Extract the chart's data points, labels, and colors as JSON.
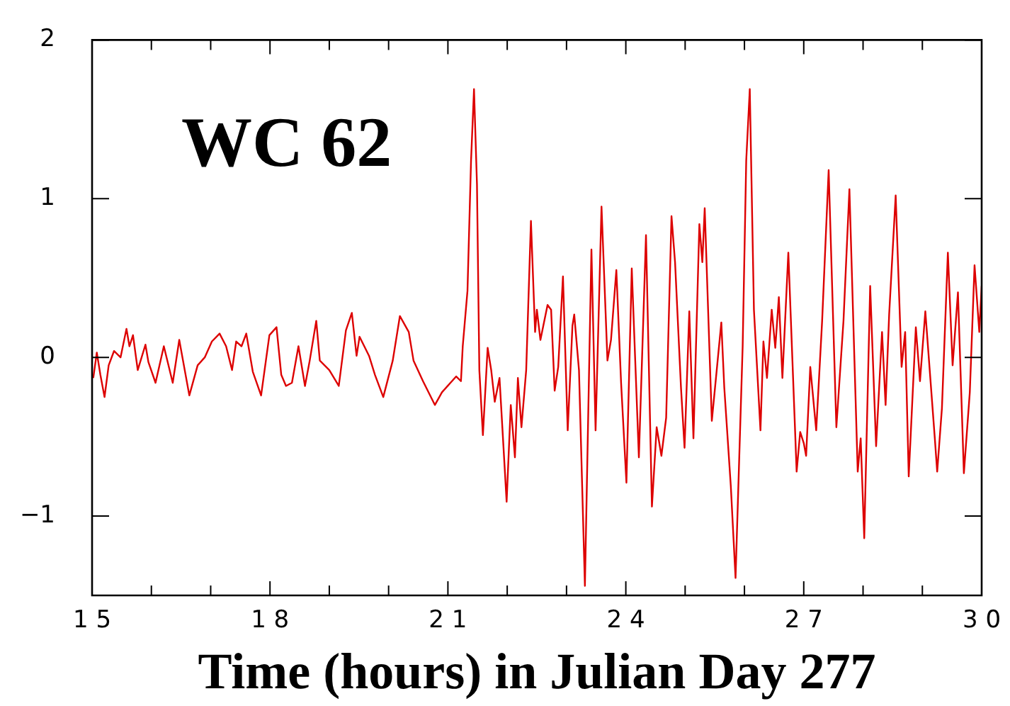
{
  "chart_data": {
    "type": "line",
    "title": "WC 62",
    "xlabel": "Time (hours) in Julian Day 277",
    "xlim": [
      15,
      30
    ],
    "ylim": [
      -1.5,
      2
    ],
    "xticks": [
      15,
      {
        "value": 16,
        "label": null
      },
      {
        "value": 17,
        "label": null
      },
      18,
      {
        "value": 19,
        "label": null
      },
      {
        "value": 20,
        "label": null
      },
      21,
      {
        "value": 22,
        "label": null
      },
      {
        "value": 23,
        "label": null
      },
      24,
      {
        "value": 25,
        "label": null
      },
      {
        "value": 26,
        "label": null
      },
      27,
      {
        "value": 28,
        "label": null
      },
      {
        "value": 29,
        "label": null
      },
      30
    ],
    "yticks": [
      {
        "value": -1,
        "label": "−1"
      },
      0,
      1,
      2
    ],
    "grid": false,
    "legend": false,
    "marker": "none",
    "line_style": "solid",
    "series": [
      {
        "color": "#dd0000",
        "x": [
          15.02,
          15.08,
          15.14,
          15.21,
          15.28,
          15.37,
          15.48,
          15.58,
          15.63,
          15.69,
          15.77,
          15.9,
          15.95,
          16.07,
          16.21,
          16.36,
          16.47,
          16.64,
          16.78,
          16.9,
          17.02,
          17.15,
          17.26,
          17.36,
          17.43,
          17.52,
          17.6,
          17.71,
          17.85,
          17.99,
          18.11,
          18.19,
          18.27,
          18.37,
          18.48,
          18.59,
          18.67,
          18.78,
          18.84,
          19.0,
          19.16,
          19.28,
          19.38,
          19.46,
          19.51,
          19.67,
          19.77,
          19.91,
          20.07,
          20.19,
          20.34,
          20.42,
          20.58,
          20.78,
          20.9,
          21.14,
          21.22,
          21.25,
          21.33,
          21.39,
          21.44,
          21.49,
          21.53,
          21.59,
          21.67,
          21.73,
          21.79,
          21.87,
          21.99,
          22.06,
          22.13,
          22.18,
          22.24,
          22.32,
          22.4,
          22.47,
          22.5,
          22.56,
          22.68,
          22.74,
          22.8,
          22.86,
          22.94,
          23.02,
          23.1,
          23.13,
          23.21,
          23.31,
          23.42,
          23.49,
          23.59,
          23.69,
          23.75,
          23.84,
          23.92,
          24.01,
          24.1,
          24.22,
          24.34,
          24.44,
          24.52,
          24.6,
          24.68,
          24.77,
          24.83,
          24.93,
          24.99,
          25.07,
          25.14,
          25.24,
          25.29,
          25.33,
          25.45,
          25.53,
          25.61,
          25.66,
          25.77,
          25.85,
          25.97,
          26.03,
          26.09,
          26.16,
          26.27,
          26.32,
          26.38,
          26.46,
          26.52,
          26.58,
          26.64,
          26.74,
          26.88,
          26.94,
          27.0,
          27.04,
          27.11,
          27.21,
          27.31,
          27.42,
          27.55,
          27.67,
          27.77,
          27.91,
          27.96,
          28.02,
          28.12,
          28.22,
          28.32,
          28.38,
          28.44,
          28.55,
          28.65,
          28.71,
          28.77,
          28.89,
          28.96,
          29.05,
          29.21,
          29.25,
          29.33,
          29.43,
          29.51,
          29.6,
          29.7,
          29.8,
          29.88,
          29.96,
          30.0
        ],
        "values": [
          -0.13,
          0.03,
          -0.11,
          -0.25,
          -0.05,
          0.04,
          0.0,
          0.18,
          0.07,
          0.14,
          -0.08,
          0.08,
          -0.03,
          -0.16,
          0.07,
          -0.16,
          0.11,
          -0.24,
          -0.05,
          0.0,
          0.1,
          0.15,
          0.07,
          -0.08,
          0.1,
          0.07,
          0.15,
          -0.09,
          -0.24,
          0.14,
          0.19,
          -0.11,
          -0.18,
          -0.16,
          0.07,
          -0.18,
          -0.02,
          0.23,
          -0.02,
          -0.08,
          -0.18,
          0.17,
          0.28,
          0.01,
          0.13,
          0.01,
          -0.11,
          -0.25,
          -0.02,
          0.26,
          0.16,
          -0.02,
          -0.15,
          -0.3,
          -0.22,
          -0.12,
          -0.15,
          0.07,
          0.42,
          1.24,
          1.69,
          1.09,
          -0.08,
          -0.49,
          0.06,
          -0.08,
          -0.28,
          -0.13,
          -0.91,
          -0.3,
          -0.63,
          -0.13,
          -0.44,
          -0.08,
          0.86,
          0.16,
          0.3,
          0.11,
          0.33,
          0.3,
          -0.21,
          -0.06,
          0.51,
          -0.46,
          0.2,
          0.27,
          -0.08,
          -1.44,
          0.68,
          -0.46,
          0.95,
          -0.02,
          0.11,
          0.55,
          -0.16,
          -0.79,
          0.56,
          -0.63,
          0.77,
          -0.94,
          -0.44,
          -0.62,
          -0.38,
          0.89,
          0.6,
          -0.19,
          -0.57,
          0.29,
          -0.51,
          0.84,
          0.6,
          0.94,
          -0.4,
          -0.09,
          0.22,
          -0.19,
          -0.81,
          -1.39,
          0.07,
          1.24,
          1.69,
          0.3,
          -0.46,
          0.1,
          -0.13,
          0.3,
          0.06,
          0.38,
          -0.13,
          0.66,
          -0.72,
          -0.47,
          -0.54,
          -0.62,
          -0.06,
          -0.46,
          0.23,
          1.18,
          -0.44,
          0.23,
          1.06,
          -0.72,
          -0.51,
          -1.14,
          0.45,
          -0.56,
          0.16,
          -0.3,
          0.27,
          1.02,
          -0.06,
          0.16,
          -0.75,
          0.19,
          -0.15,
          0.29,
          -0.51,
          -0.72,
          -0.32,
          0.66,
          -0.05,
          0.41,
          -0.73,
          -0.22,
          0.58,
          0.16,
          0.45
        ]
      }
    ]
  }
}
